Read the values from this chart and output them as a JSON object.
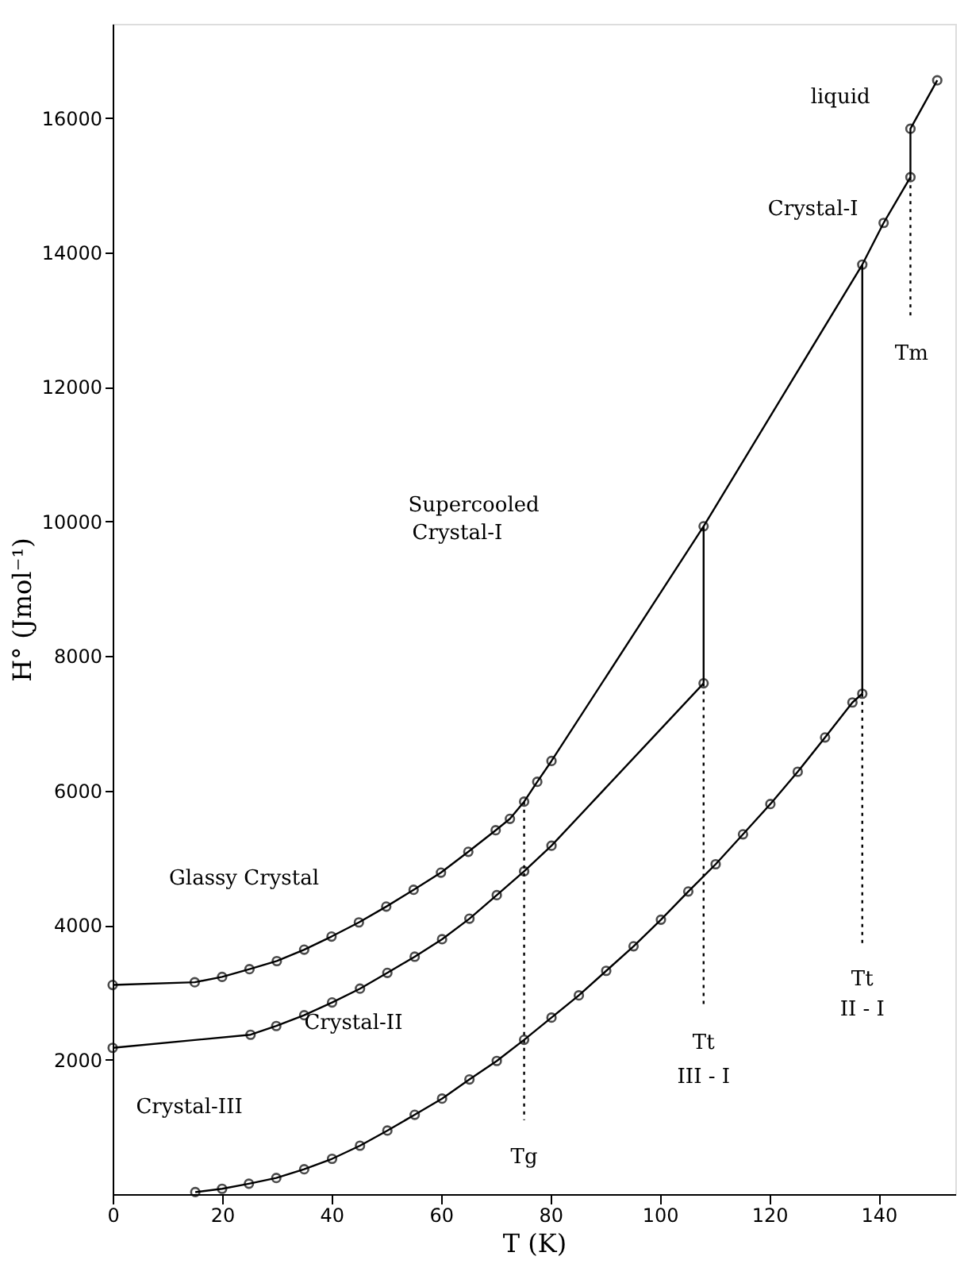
{
  "chart_data": {
    "type": "line",
    "xlabel": "T (K)",
    "ylabel": "H° (Jmol⁻¹)",
    "xlim": [
      0,
      154
    ],
    "ylim": [
      0,
      17400
    ],
    "xticks": [
      0,
      20,
      40,
      60,
      80,
      100,
      120,
      140
    ],
    "yticks": [
      2000,
      4000,
      6000,
      8000,
      10000,
      12000,
      14000,
      16000
    ],
    "grid": false,
    "series": [
      {
        "color": "#000000",
        "marker": "circle",
        "line_style": "solid",
        "x": [
          0,
          15,
          20,
          25,
          30,
          35,
          40,
          45,
          50,
          55,
          60,
          65,
          70,
          72.6,
          75.2,
          77.6,
          80.2,
          108,
          137,
          140.9,
          145.8,
          145.8,
          150.7
        ],
        "values": [
          3110,
          3150,
          3230,
          3345,
          3465,
          3635,
          3830,
          4040,
          4275,
          4525,
          4780,
          5090,
          5410,
          5580,
          5835,
          6130,
          6440,
          9930,
          13820,
          14440,
          15120,
          15840,
          16560
        ]
      },
      {
        "color": "#000000",
        "marker": "circle",
        "line_style": "solid",
        "x": [
          0,
          25.2,
          29.9,
          35,
          40.1,
          45.2,
          50.2,
          55.2,
          60.2,
          65.2,
          70.2,
          75.2,
          80.2,
          108
        ],
        "values": [
          2175,
          2370,
          2500,
          2660,
          2850,
          3055,
          3290,
          3530,
          3790,
          4095,
          4445,
          4800,
          5180,
          7595
        ]
      },
      {
        "color": "#000000",
        "marker": "circle",
        "line_style": "solid",
        "x": [
          15.1,
          20,
          24.9,
          29.9,
          35,
          40.1,
          45.2,
          50.2,
          55.2,
          60.2,
          65.2,
          70.2,
          75.2,
          80.2,
          85.2,
          90.2,
          95.2,
          100.2,
          105.2,
          110.2,
          115.2,
          120.2,
          125.2,
          130.2,
          135.2,
          137
        ],
        "values": [
          30,
          80,
          155,
          240,
          370,
          525,
          720,
          945,
          1180,
          1420,
          1705,
          1980,
          2295,
          2625,
          2955,
          3320,
          3685,
          4080,
          4500,
          4905,
          5350,
          5800,
          6280,
          6790,
          7310,
          7440
        ]
      },
      {
        "color": "#000000",
        "marker": "none",
        "line_style": "solid",
        "x": [
          108,
          108
        ],
        "values": [
          7595,
          9930
        ]
      },
      {
        "color": "#000000",
        "marker": "none",
        "line_style": "solid",
        "x": [
          137,
          137
        ],
        "values": [
          7440,
          13820
        ]
      },
      {
        "color": "#000000",
        "marker": "none",
        "line_style": "dotted",
        "x": [
          75.2,
          75.2
        ],
        "values": [
          5835,
          1100
        ]
      },
      {
        "color": "#000000",
        "marker": "none",
        "line_style": "dotted",
        "x": [
          108,
          108
        ],
        "values": [
          7595,
          2800
        ]
      },
      {
        "color": "#000000",
        "marker": "none",
        "line_style": "dotted",
        "x": [
          137,
          137
        ],
        "values": [
          7440,
          3700
        ]
      },
      {
        "color": "#000000",
        "marker": "none",
        "line_style": "dotted",
        "x": [
          145.8,
          145.8
        ],
        "values": [
          15120,
          13000
        ]
      }
    ],
    "annotations": [
      "Glassy Crystal",
      "Crystal-III",
      "Crystal-II",
      "Supercooled",
      "Crystal-I",
      "Crystal-I",
      "liquid",
      "Tg",
      "Tt",
      "III - I",
      "Tt",
      "II - I",
      "Tm"
    ]
  }
}
